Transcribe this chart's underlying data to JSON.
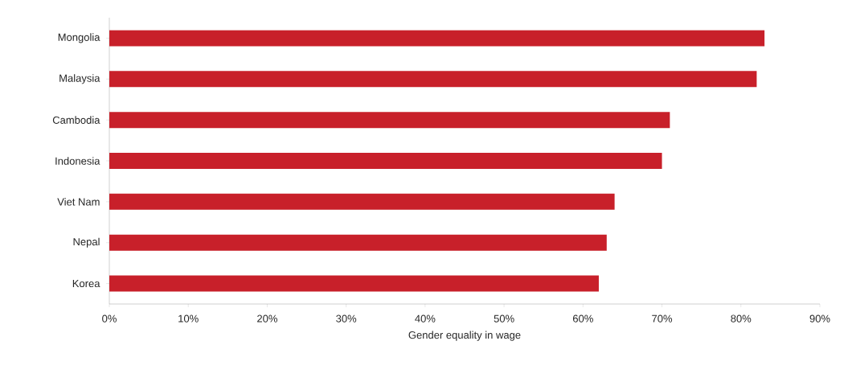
{
  "chart_data": {
    "type": "bar",
    "orientation": "horizontal",
    "xlabel": "Gender equality in wage",
    "categories": [
      "Mongolia",
      "Malaysia",
      "Cambodia",
      "Indonesia",
      "Viet Nam",
      "Nepal",
      "Korea"
    ],
    "values": [
      83,
      82,
      71,
      70,
      64,
      63,
      62
    ],
    "color": "#c8202a",
    "grid": false,
    "xlim": [
      0,
      90
    ],
    "xticks": [
      {
        "value": 0,
        "label": "0%"
      },
      {
        "value": 10,
        "label": "10%"
      },
      {
        "value": 20,
        "label": "20%"
      },
      {
        "value": 30,
        "label": "30%"
      },
      {
        "value": 40,
        "label": "40%"
      },
      {
        "value": 50,
        "label": "50%"
      },
      {
        "value": 60,
        "label": "60%"
      },
      {
        "value": 70,
        "label": "70%"
      },
      {
        "value": 80,
        "label": "80%"
      },
      {
        "value": 90,
        "label": "90%"
      }
    ]
  }
}
